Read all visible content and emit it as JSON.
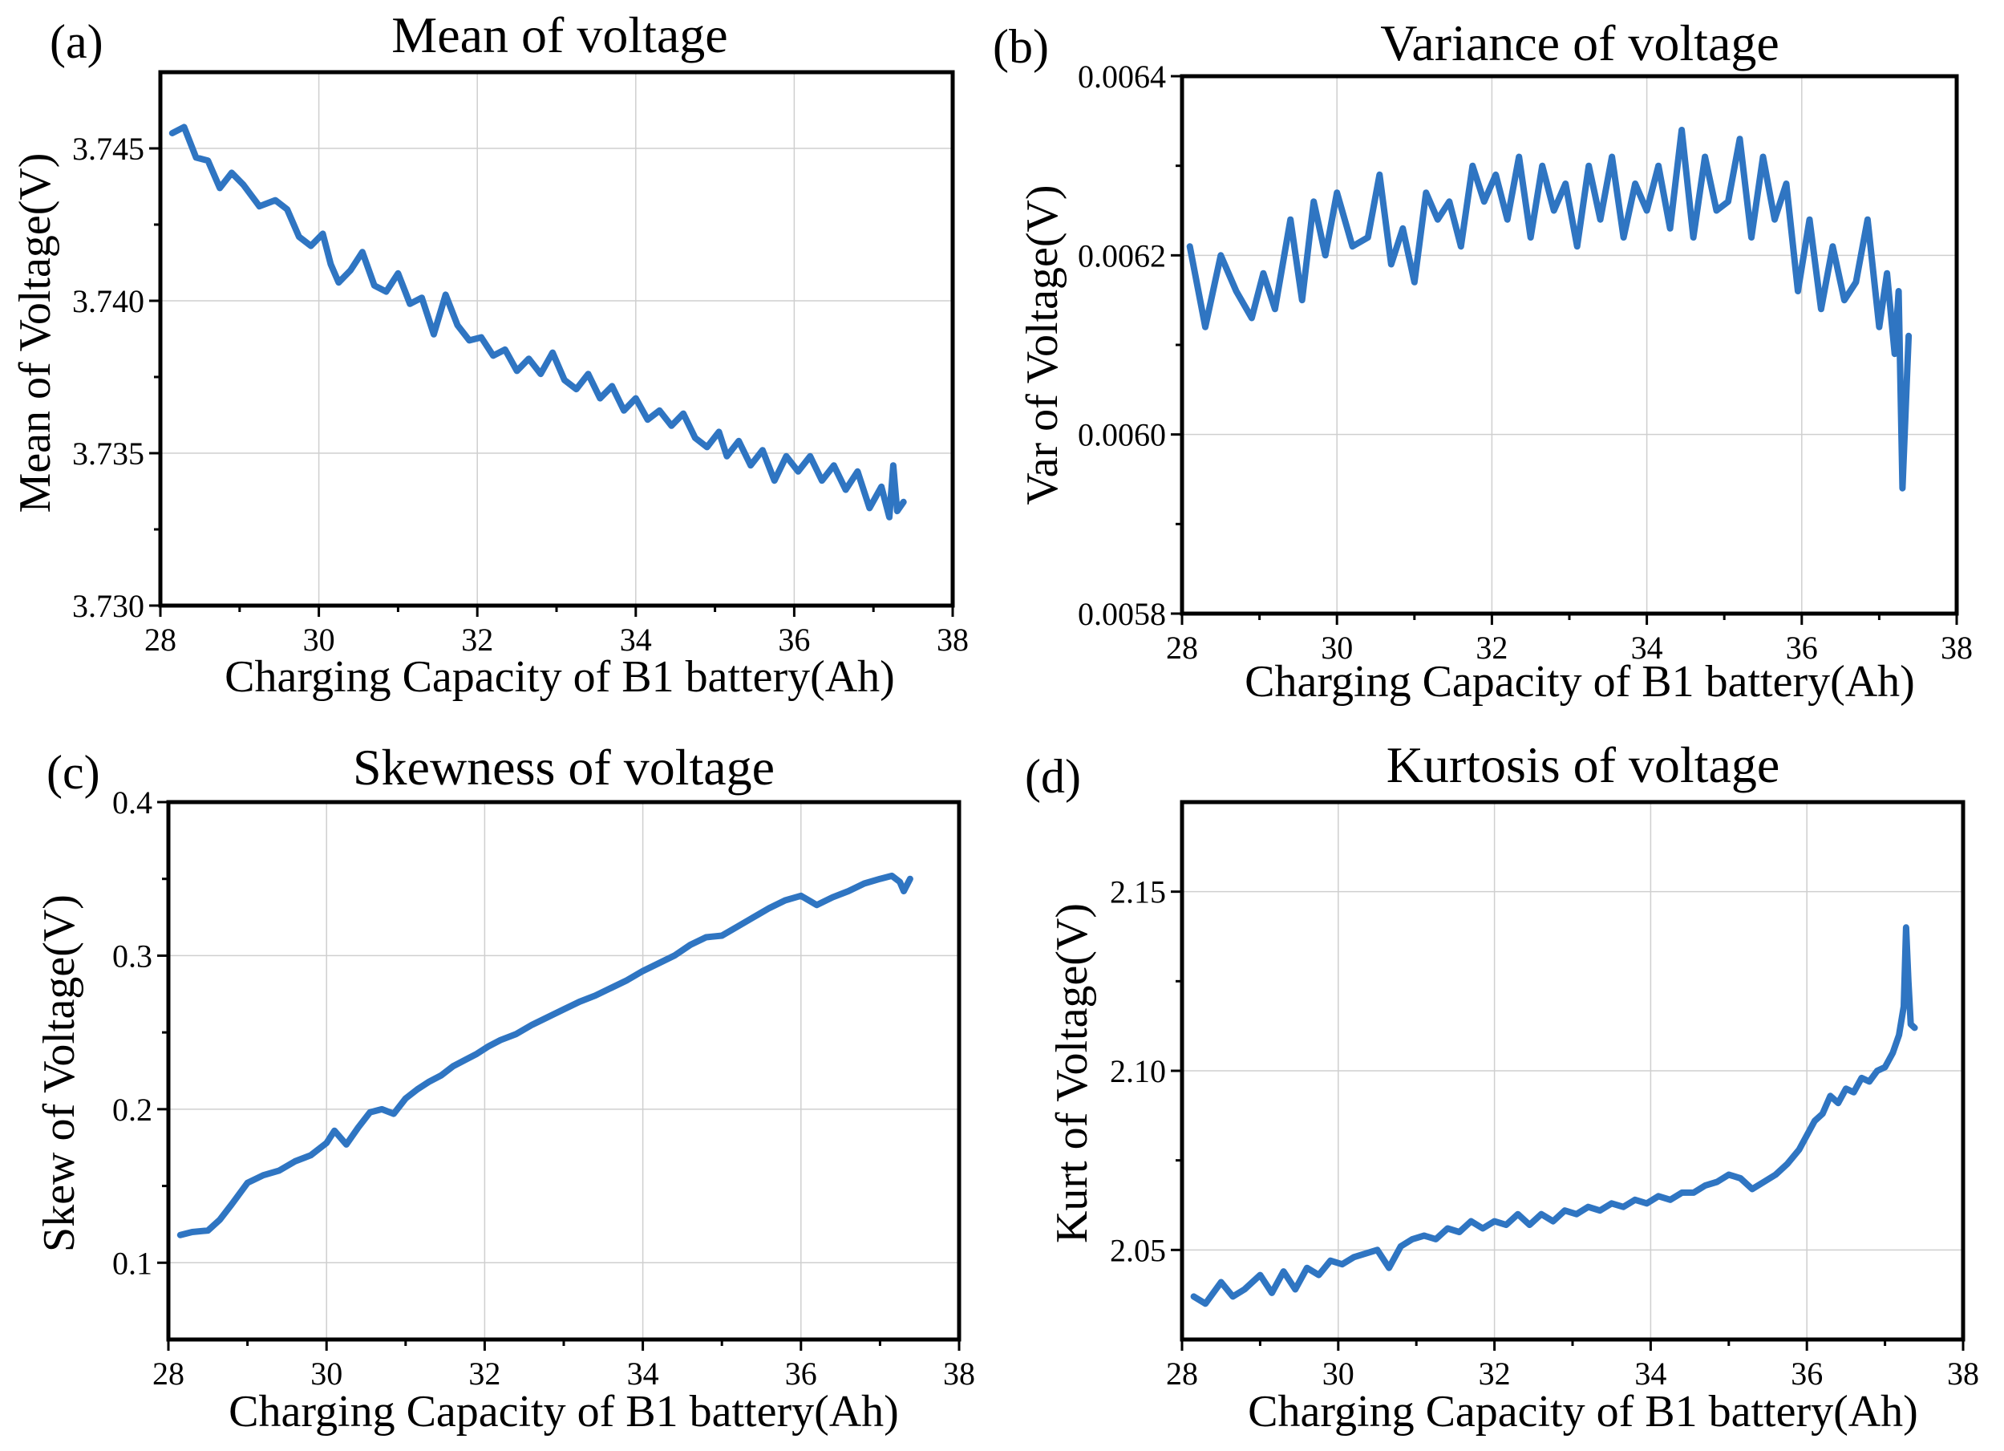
{
  "figure": {
    "series_color": "#2f75c2"
  },
  "chart_data": [
    {
      "type": "line",
      "panel_label": "(a)",
      "title": "Mean of voltage",
      "xlabel": "Charging Capacity of B1 battery(Ah)",
      "ylabel": "Mean of Voltage(V)",
      "xlim": [
        28,
        38
      ],
      "ylim": [
        3.73,
        3.7475
      ],
      "xticks": [
        28,
        30,
        32,
        34,
        36,
        38
      ],
      "xtick_labels": [
        "28",
        "30",
        "32",
        "34",
        "36",
        "38"
      ],
      "yticks": [
        3.73,
        3.735,
        3.74,
        3.745
      ],
      "ytick_labels": [
        "3.730",
        "3.735",
        "3.740",
        "3.745"
      ],
      "grid": true,
      "x": [
        28.15,
        28.3,
        28.45,
        28.6,
        28.75,
        28.9,
        29.05,
        29.25,
        29.45,
        29.6,
        29.75,
        29.9,
        30.05,
        30.15,
        30.25,
        30.4,
        30.55,
        30.7,
        30.85,
        31.0,
        31.15,
        31.3,
        31.45,
        31.6,
        31.75,
        31.9,
        32.05,
        32.2,
        32.35,
        32.5,
        32.65,
        32.8,
        32.95,
        33.1,
        33.25,
        33.4,
        33.55,
        33.7,
        33.85,
        34.0,
        34.15,
        34.3,
        34.45,
        34.6,
        34.75,
        34.9,
        35.05,
        35.15,
        35.3,
        35.45,
        35.6,
        35.75,
        35.9,
        36.05,
        36.2,
        36.35,
        36.5,
        36.65,
        36.8,
        36.95,
        37.1,
        37.2,
        37.25,
        37.3,
        37.38
      ],
      "series": [
        {
          "values": [
            3.7455,
            3.7457,
            3.7447,
            3.7446,
            3.7437,
            3.7442,
            3.7438,
            3.7431,
            3.7433,
            3.743,
            3.7421,
            3.7418,
            3.7422,
            3.7412,
            3.7406,
            3.741,
            3.7416,
            3.7405,
            3.7403,
            3.7409,
            3.7399,
            3.7401,
            3.7389,
            3.7402,
            3.7392,
            3.7387,
            3.7388,
            3.7382,
            3.7384,
            3.7377,
            3.7381,
            3.7376,
            3.7383,
            3.7374,
            3.7371,
            3.7376,
            3.7368,
            3.7372,
            3.7364,
            3.7368,
            3.7361,
            3.7364,
            3.7359,
            3.7363,
            3.7355,
            3.7352,
            3.7357,
            3.7349,
            3.7354,
            3.7346,
            3.7351,
            3.7341,
            3.7349,
            3.7344,
            3.7349,
            3.7341,
            3.7346,
            3.7338,
            3.7344,
            3.7332,
            3.7339,
            3.7329,
            3.7346,
            3.7331,
            3.7334
          ]
        }
      ]
    },
    {
      "type": "line",
      "panel_label": "(b)",
      "title": "Variance of voltage",
      "xlabel": "Charging Capacity of B1 battery(Ah)",
      "ylabel": "Var of Voltage(V)",
      "xlim": [
        28,
        38
      ],
      "ylim": [
        0.0058,
        0.0064
      ],
      "xticks": [
        28,
        30,
        32,
        34,
        36,
        38
      ],
      "xtick_labels": [
        "28",
        "30",
        "32",
        "34",
        "36",
        "38"
      ],
      "yticks": [
        0.0058,
        0.006,
        0.0062,
        0.0064
      ],
      "ytick_labels": [
        "0.0058",
        "0.0060",
        "0.0062",
        "0.0064"
      ],
      "grid": true,
      "x": [
        28.1,
        28.3,
        28.5,
        28.7,
        28.9,
        29.05,
        29.2,
        29.4,
        29.55,
        29.7,
        29.85,
        30.0,
        30.2,
        30.4,
        30.55,
        30.7,
        30.85,
        31.0,
        31.15,
        31.3,
        31.45,
        31.6,
        31.75,
        31.9,
        32.05,
        32.2,
        32.35,
        32.5,
        32.65,
        32.8,
        32.95,
        33.1,
        33.25,
        33.4,
        33.55,
        33.7,
        33.85,
        34.0,
        34.15,
        34.3,
        34.45,
        34.6,
        34.75,
        34.9,
        35.05,
        35.2,
        35.35,
        35.5,
        35.65,
        35.8,
        35.95,
        36.1,
        36.25,
        36.4,
        36.55,
        36.7,
        36.85,
        37.0,
        37.1,
        37.2,
        37.25,
        37.3,
        37.38
      ],
      "series": [
        {
          "values": [
            0.00621,
            0.00612,
            0.0062,
            0.00616,
            0.00613,
            0.00618,
            0.00614,
            0.00624,
            0.00615,
            0.00626,
            0.0062,
            0.00627,
            0.00621,
            0.00622,
            0.00629,
            0.00619,
            0.00623,
            0.00617,
            0.00627,
            0.00624,
            0.00626,
            0.00621,
            0.0063,
            0.00626,
            0.00629,
            0.00624,
            0.00631,
            0.00622,
            0.0063,
            0.00625,
            0.00628,
            0.00621,
            0.0063,
            0.00624,
            0.00631,
            0.00622,
            0.00628,
            0.00625,
            0.0063,
            0.00623,
            0.00634,
            0.00622,
            0.00631,
            0.00625,
            0.00626,
            0.00633,
            0.00622,
            0.00631,
            0.00624,
            0.00628,
            0.00616,
            0.00624,
            0.00614,
            0.00621,
            0.00615,
            0.00617,
            0.00624,
            0.00612,
            0.00618,
            0.00609,
            0.00616,
            0.00594,
            0.00611
          ]
        }
      ]
    },
    {
      "type": "line",
      "panel_label": "(c)",
      "title": "Skewness of voltage",
      "xlabel": "Charging Capacity of B1 battery(Ah)",
      "ylabel": "Skew of Voltage(V)",
      "xlim": [
        28,
        38
      ],
      "ylim": [
        0.05,
        0.4
      ],
      "xticks": [
        28,
        30,
        32,
        34,
        36,
        38
      ],
      "xtick_labels": [
        "28",
        "30",
        "32",
        "34",
        "36",
        "38"
      ],
      "yticks": [
        0.1,
        0.2,
        0.3,
        0.4
      ],
      "ytick_labels": [
        "0.1",
        "0.2",
        "0.3",
        "0.4"
      ],
      "grid": true,
      "x": [
        28.15,
        28.3,
        28.5,
        28.65,
        28.8,
        29.0,
        29.2,
        29.4,
        29.6,
        29.8,
        30.0,
        30.1,
        30.25,
        30.4,
        30.55,
        30.7,
        30.85,
        31.0,
        31.15,
        31.3,
        31.45,
        31.6,
        31.75,
        31.9,
        32.05,
        32.2,
        32.4,
        32.6,
        32.8,
        33.0,
        33.2,
        33.4,
        33.6,
        33.8,
        34.0,
        34.2,
        34.4,
        34.6,
        34.8,
        35.0,
        35.2,
        35.4,
        35.6,
        35.8,
        36.0,
        36.2,
        36.4,
        36.6,
        36.8,
        37.0,
        37.15,
        37.25,
        37.3,
        37.38
      ],
      "series": [
        {
          "values": [
            0.118,
            0.12,
            0.121,
            0.128,
            0.138,
            0.152,
            0.157,
            0.16,
            0.166,
            0.17,
            0.178,
            0.186,
            0.177,
            0.188,
            0.198,
            0.2,
            0.197,
            0.207,
            0.213,
            0.218,
            0.222,
            0.228,
            0.232,
            0.236,
            0.241,
            0.245,
            0.249,
            0.255,
            0.26,
            0.265,
            0.27,
            0.274,
            0.279,
            0.284,
            0.29,
            0.295,
            0.3,
            0.307,
            0.312,
            0.313,
            0.319,
            0.325,
            0.331,
            0.336,
            0.339,
            0.333,
            0.338,
            0.342,
            0.347,
            0.35,
            0.352,
            0.348,
            0.342,
            0.35
          ]
        }
      ]
    },
    {
      "type": "line",
      "panel_label": "(d)",
      "title": "Kurtosis of voltage",
      "xlabel": "Charging Capacity of B1 battery(Ah)",
      "ylabel": "Kurt of Voltage(V)",
      "xlim": [
        28,
        38
      ],
      "ylim": [
        2.025,
        2.175
      ],
      "xticks": [
        28,
        30,
        32,
        34,
        36,
        38
      ],
      "xtick_labels": [
        "28",
        "30",
        "32",
        "34",
        "36",
        "38"
      ],
      "yticks": [
        2.05,
        2.1,
        2.15
      ],
      "ytick_labels": [
        "2.05",
        "2.10",
        "2.15"
      ],
      "grid": true,
      "x": [
        28.15,
        28.3,
        28.5,
        28.65,
        28.8,
        29.0,
        29.15,
        29.3,
        29.45,
        29.6,
        29.75,
        29.9,
        30.05,
        30.2,
        30.35,
        30.5,
        30.65,
        30.8,
        30.95,
        31.1,
        31.25,
        31.4,
        31.55,
        31.7,
        31.85,
        32.0,
        32.15,
        32.3,
        32.45,
        32.6,
        32.75,
        32.9,
        33.05,
        33.2,
        33.35,
        33.5,
        33.65,
        33.8,
        33.95,
        34.1,
        34.25,
        34.4,
        34.55,
        34.7,
        34.85,
        35.0,
        35.15,
        35.3,
        35.45,
        35.6,
        35.75,
        35.9,
        36.0,
        36.1,
        36.2,
        36.3,
        36.4,
        36.5,
        36.6,
        36.7,
        36.8,
        36.9,
        37.0,
        37.1,
        37.18,
        37.24,
        37.27,
        37.3,
        37.33,
        37.38
      ],
      "series": [
        {
          "values": [
            2.037,
            2.035,
            2.041,
            2.037,
            2.039,
            2.043,
            2.038,
            2.044,
            2.039,
            2.045,
            2.043,
            2.047,
            2.046,
            2.048,
            2.049,
            2.05,
            2.045,
            2.051,
            2.053,
            2.054,
            2.053,
            2.056,
            2.055,
            2.058,
            2.056,
            2.058,
            2.057,
            2.06,
            2.057,
            2.06,
            2.058,
            2.061,
            2.06,
            2.062,
            2.061,
            2.063,
            2.062,
            2.064,
            2.063,
            2.065,
            2.064,
            2.066,
            2.066,
            2.068,
            2.069,
            2.071,
            2.07,
            2.067,
            2.069,
            2.071,
            2.074,
            2.078,
            2.082,
            2.086,
            2.088,
            2.093,
            2.091,
            2.095,
            2.094,
            2.098,
            2.097,
            2.1,
            2.101,
            2.105,
            2.11,
            2.118,
            2.14,
            2.125,
            2.113,
            2.112
          ]
        }
      ]
    }
  ]
}
